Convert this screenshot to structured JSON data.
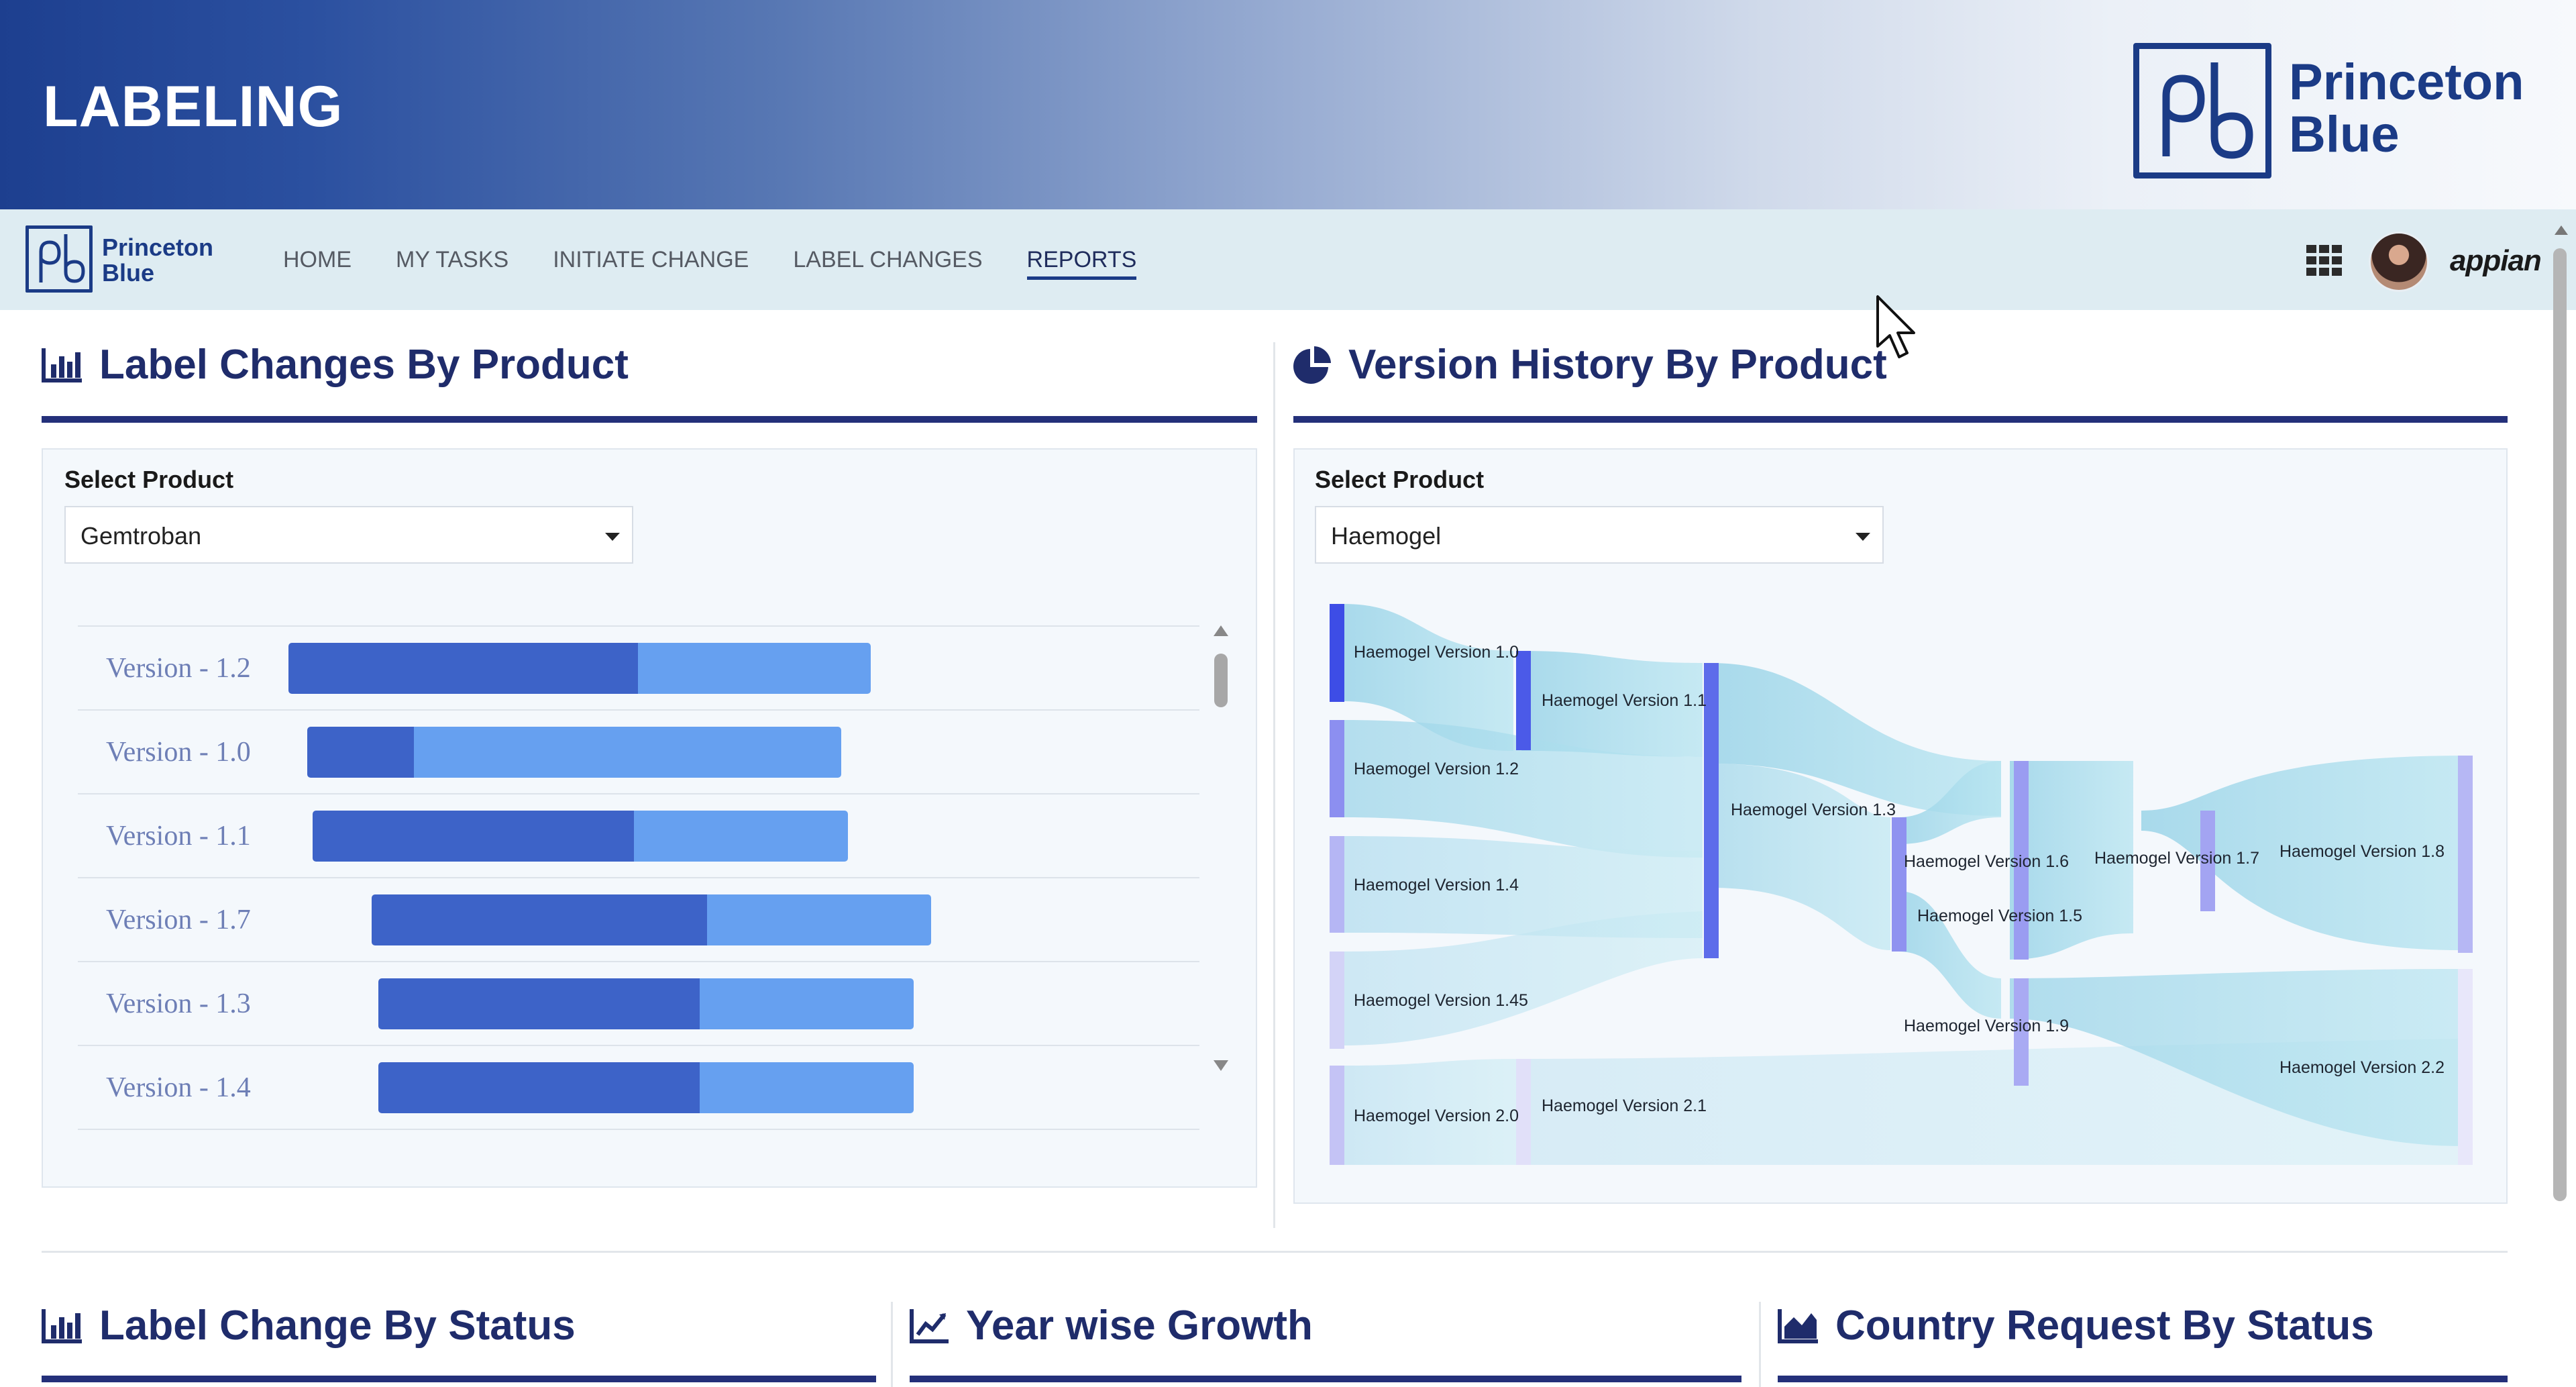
{
  "banner": {
    "title": "LABELING",
    "brand_line1": "Princeton",
    "brand_line2": "Blue"
  },
  "nav": {
    "brand_line1": "Princeton",
    "brand_line2": "Blue",
    "items": [
      {
        "label": "HOME"
      },
      {
        "label": "MY TASKS"
      },
      {
        "label": "INITIATE CHANGE"
      },
      {
        "label": "LABEL CHANGES"
      },
      {
        "label": "REPORTS",
        "active": true
      }
    ],
    "appian_label": "appian"
  },
  "label_changes": {
    "title": "Label Changes By Product",
    "field_label": "Select Product",
    "selected": "Gemtroban",
    "rows": [
      {
        "label": "Version - 1.2",
        "dark": 0.6,
        "light": 0.4
      },
      {
        "label": "Version - 1.0",
        "dark": 0.2,
        "light": 0.8
      },
      {
        "label": "Version - 1.1",
        "dark": 0.6,
        "light": 0.4
      },
      {
        "label": "Version - 1.7",
        "dark": 0.6,
        "light": 0.4
      },
      {
        "label": "Version - 1.3",
        "dark": 0.6,
        "light": 0.4
      },
      {
        "label": "Version - 1.4",
        "dark": 0.6,
        "light": 0.4
      }
    ]
  },
  "version_history": {
    "title": "Version History By Product",
    "field_label": "Select Product",
    "selected": "Haemogel",
    "nodes": [
      "Haemogel Version 1.0",
      "Haemogel Version 1.1",
      "Haemogel Version 1.2",
      "Haemogel Version 1.4",
      "Haemogel Version 1.45",
      "Haemogel Version 2.0",
      "Haemogel Version 2.1",
      "Haemogel Version 1.3",
      "Haemogel Version 1.6",
      "Haemogel Version 1.5",
      "Haemogel Version 1.9",
      "Haemogel Version 1.7",
      "Haemogel Version 1.8",
      "Haemogel Version 2.2"
    ]
  },
  "bottom_sections": [
    {
      "title": "Label Change By Status"
    },
    {
      "title": "Year wise Growth"
    },
    {
      "title": "Country Request By Status"
    }
  ],
  "colors": {
    "accent": "#24307a",
    "bar_dark": "#3d63c8",
    "bar_light": "#66a0f0",
    "nav_bg": "#deecf2"
  }
}
